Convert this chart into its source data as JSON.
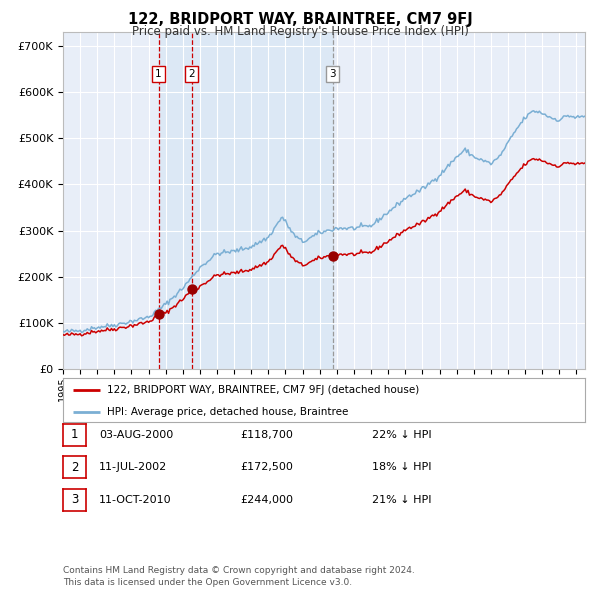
{
  "title": "122, BRIDPORT WAY, BRAINTREE, CM7 9FJ",
  "subtitle": "Price paid vs. HM Land Registry's House Price Index (HPI)",
  "ylabel_ticks": [
    "£0",
    "£100K",
    "£200K",
    "£300K",
    "£400K",
    "£500K",
    "£600K",
    "£700K"
  ],
  "ylim": [
    0,
    730000
  ],
  "sale_dates_num": [
    2000.58,
    2002.53,
    2010.77
  ],
  "sale_prices": [
    118700,
    172500,
    244000
  ],
  "sale_labels": [
    "1",
    "2",
    "3"
  ],
  "legend_red": "122, BRIDPORT WAY, BRAINTREE, CM7 9FJ (detached house)",
  "legend_blue": "HPI: Average price, detached house, Braintree",
  "table_rows": [
    [
      "1",
      "03-AUG-2000",
      "£118,700",
      "22% ↓ HPI"
    ],
    [
      "2",
      "11-JUL-2002",
      "£172,500",
      "18% ↓ HPI"
    ],
    [
      "3",
      "11-OCT-2010",
      "£244,000",
      "21% ↓ HPI"
    ]
  ],
  "footer": "Contains HM Land Registry data © Crown copyright and database right 2024.\nThis data is licensed under the Open Government Licence v3.0.",
  "bg_color": "#ffffff",
  "plot_bg_color": "#e8eef8",
  "grid_color": "#ffffff",
  "red_line_color": "#cc0000",
  "blue_line_color": "#7bafd4",
  "marker_color": "#990000",
  "shade_color": "#dce8f5",
  "xmin": 1995.0,
  "xmax": 2025.5
}
